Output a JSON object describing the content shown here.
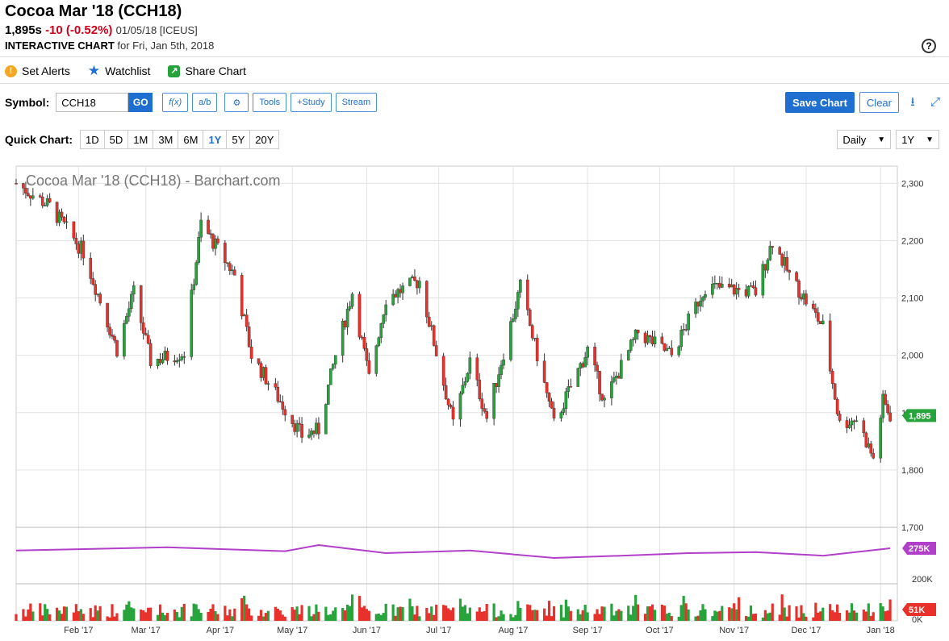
{
  "header": {
    "title": "Cocoa Mar '18 (CCH18)",
    "price": "1,895s",
    "change": "-10 (-0.52%)",
    "date_exchange": "01/05/18 [ICEUS]",
    "subtitle_bold": "INTERACTIVE CHART",
    "subtitle_rest": " for Fri, Jan 5th, 2018",
    "help": "?"
  },
  "actions": {
    "alerts": "Set Alerts",
    "watchlist": "Watchlist",
    "share": "Share Chart"
  },
  "toolbar": {
    "symbol_label": "Symbol:",
    "symbol_value": "CCH18",
    "go": "GO",
    "fx": "f(x)",
    "ab": "a/b",
    "tools": "Tools",
    "study": "+Study",
    "stream": "Stream",
    "save": "Save Chart",
    "clear": "Clear"
  },
  "quick": {
    "label": "Quick Chart:",
    "ranges": [
      "1D",
      "5D",
      "1M",
      "3M",
      "6M",
      "1Y",
      "5Y",
      "20Y"
    ],
    "active": "1Y",
    "interval": "Daily",
    "period": "1Y"
  },
  "chart_data": {
    "type": "candlestick",
    "title": "Cocoa Mar '18 (CCH18) - Barchart.com",
    "ylim": [
      1700,
      2330
    ],
    "yticks": [
      "2,300",
      "2,200",
      "2,100",
      "2,000",
      "1,900",
      "1,800",
      "1,700"
    ],
    "xticks": [
      "Feb '17",
      "Mar '17",
      "Apr '17",
      "May '17",
      "Jun '17",
      "Jul '17",
      "Aug '17",
      "Sep '17",
      "Oct '17",
      "Nov '17",
      "Dec '17",
      "Jan '18"
    ],
    "last_price_label": "1,895",
    "price_path": [
      [
        "2017-01-06",
        2300
      ],
      [
        "2017-01-20",
        2260
      ],
      [
        "2017-02-03",
        2180
      ],
      [
        "2017-02-17",
        2010
      ],
      [
        "2017-02-24",
        2110
      ],
      [
        "2017-03-03",
        1990
      ],
      [
        "2017-03-17",
        2005
      ],
      [
        "2017-03-24",
        2230
      ],
      [
        "2017-04-07",
        2140
      ],
      [
        "2017-04-14",
        2000
      ],
      [
        "2017-05-05",
        1860
      ],
      [
        "2017-05-12",
        1870
      ],
      [
        "2017-05-19",
        2000
      ],
      [
        "2017-05-26",
        2110
      ],
      [
        "2017-06-02",
        1960
      ],
      [
        "2017-06-09",
        2100
      ],
      [
        "2017-06-23",
        2130
      ],
      [
        "2017-07-07",
        1880
      ],
      [
        "2017-07-14",
        1990
      ],
      [
        "2017-07-21",
        1890
      ],
      [
        "2017-08-04",
        2120
      ],
      [
        "2017-08-18",
        1880
      ],
      [
        "2017-09-01",
        2010
      ],
      [
        "2017-09-08",
        1920
      ],
      [
        "2017-09-22",
        2040
      ],
      [
        "2017-10-06",
        2000
      ],
      [
        "2017-10-20",
        2120
      ],
      [
        "2017-11-10",
        2110
      ],
      [
        "2017-11-17",
        2200
      ],
      [
        "2017-11-24",
        2140
      ],
      [
        "2017-12-08",
        2050
      ],
      [
        "2017-12-15",
        1880
      ],
      [
        "2017-12-22",
        1890
      ],
      [
        "2017-12-29",
        1820
      ],
      [
        "2018-01-02",
        1920
      ],
      [
        "2018-01-05",
        1895
      ]
    ],
    "open_interest": {
      "label": "275K",
      "tick": "200K",
      "path": [
        [
          "2017-01-06",
          238
        ],
        [
          "2017-03-10",
          248
        ],
        [
          "2017-04-28",
          236
        ],
        [
          "2017-05-12",
          255
        ],
        [
          "2017-06-09",
          230
        ],
        [
          "2017-07-14",
          238
        ],
        [
          "2017-08-18",
          215
        ],
        [
          "2017-09-15",
          222
        ],
        [
          "2017-10-13",
          230
        ],
        [
          "2017-11-10",
          233
        ],
        [
          "2017-12-08",
          222
        ],
        [
          "2018-01-05",
          275
        ]
      ]
    },
    "volume": {
      "label": "51K",
      "ticks": [
        "0K"
      ]
    },
    "colors": {
      "up": "#27a33b",
      "down": "#e8312a",
      "oi": "#b23fc9",
      "last": "#27a33b",
      "vol_label": "#e8312a"
    }
  }
}
